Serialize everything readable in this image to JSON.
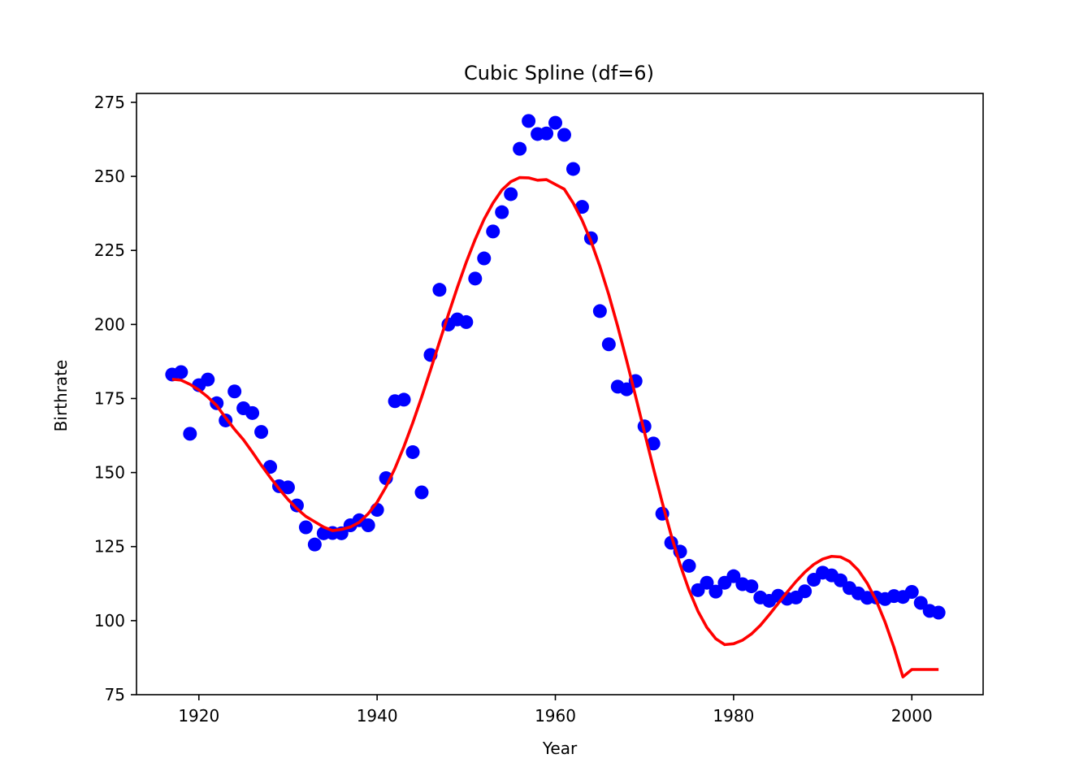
{
  "chart_data": {
    "type": "scatter",
    "title": "Cubic Spline (df=6)",
    "xlabel": "Year",
    "ylabel": "Birthrate",
    "xlim": [
      1913,
      2008
    ],
    "ylim": [
      75,
      278
    ],
    "xticks": [
      1920,
      1940,
      1960,
      1980,
      2000
    ],
    "yticks": [
      75,
      100,
      125,
      150,
      175,
      200,
      225,
      250,
      275
    ],
    "grid": false,
    "colors": {
      "points": "#0000ff",
      "fit": "#ff0000"
    },
    "series": [
      {
        "kind": "points",
        "x": [
          1917,
          1918,
          1919,
          1920,
          1921,
          1922,
          1923,
          1924,
          1925,
          1926,
          1927,
          1928,
          1929,
          1930,
          1931,
          1932,
          1933,
          1934,
          1935,
          1936,
          1937,
          1938,
          1939,
          1940,
          1941,
          1942,
          1943,
          1944,
          1945,
          1946,
          1947,
          1948,
          1949,
          1950,
          1951,
          1952,
          1953,
          1954,
          1955,
          1956,
          1957,
          1958,
          1959,
          1960,
          1961,
          1962,
          1963,
          1964,
          1965,
          1966,
          1967,
          1968,
          1969,
          1970,
          1971,
          1972,
          1973,
          1974,
          1975,
          1976,
          1977,
          1978,
          1979,
          1980,
          1981,
          1982,
          1983,
          1984,
          1985,
          1986,
          1987,
          1988,
          1989,
          1990,
          1991,
          1992,
          1993,
          1994,
          1995,
          1996,
          1997,
          1998,
          1999,
          2000,
          2001,
          2002,
          2003
        ],
        "y": [
          183.1,
          183.9,
          163.1,
          179.5,
          181.4,
          173.4,
          167.6,
          177.4,
          171.7,
          170.1,
          163.7,
          151.9,
          145.4,
          145.0,
          138.9,
          131.5,
          125.7,
          129.5,
          129.6,
          129.5,
          132.2,
          133.9,
          132.2,
          137.4,
          148.1,
          174.1,
          174.6,
          156.9,
          143.3,
          189.7,
          211.7,
          200.0,
          201.7,
          200.8,
          215.5,
          222.3,
          231.4,
          237.9,
          244.0,
          259.3,
          268.7,
          264.3,
          264.5,
          268.1,
          264.0,
          252.5,
          239.7,
          229.1,
          204.5,
          193.3,
          179.0,
          178.1,
          180.9,
          165.6,
          159.8,
          136.1,
          126.3,
          123.3,
          118.5,
          110.3,
          112.8,
          109.8,
          112.8,
          115.0,
          112.3,
          111.6,
          107.8,
          106.7,
          108.4,
          107.4,
          107.8,
          109.9,
          113.8,
          116.2,
          115.3,
          113.6,
          111.0,
          109.2,
          107.7,
          107.8,
          107.3,
          108.3,
          108.0,
          109.7,
          106.0,
          103.3,
          102.7
        ]
      },
      {
        "kind": "line",
        "x": [
          1917,
          1918,
          1919,
          1920,
          1921,
          1922,
          1923,
          1924,
          1925,
          1926,
          1927,
          1928,
          1929,
          1930,
          1931,
          1932,
          1933,
          1934,
          1935,
          1936,
          1937,
          1938,
          1939,
          1940,
          1941,
          1942,
          1943,
          1944,
          1945,
          1946,
          1947,
          1948,
          1949,
          1950,
          1951,
          1952,
          1953,
          1954,
          1955,
          1956,
          1957,
          1958,
          1959,
          1960,
          1961,
          1962,
          1963,
          1964,
          1965,
          1966,
          1967,
          1968,
          1969,
          1970,
          1971,
          1972,
          1973,
          1974,
          1975,
          1976,
          1977,
          1978,
          1979,
          1980,
          1981,
          1982,
          1983,
          1984,
          1985,
          1986,
          1987,
          1988,
          1989,
          1990,
          1991,
          1992,
          1993,
          1994,
          1995,
          1996,
          1997,
          1998,
          1999,
          2000,
          2001,
          2002,
          2003
        ],
        "y": [
          181.5,
          181.2,
          179.8,
          177.9,
          175.5,
          172.6,
          168.5,
          164.6,
          161.1,
          156.9,
          152.5,
          148.4,
          144.5,
          140.9,
          137.8,
          135.2,
          133.4,
          131.6,
          130.4,
          130.8,
          131.6,
          133.2,
          136.1,
          140.0,
          145.2,
          151.4,
          158.7,
          166.8,
          175.5,
          184.7,
          194.1,
          203.4,
          212.5,
          221.0,
          228.7,
          235.5,
          241.0,
          245.4,
          248.2,
          249.6,
          249.5,
          248.7,
          248.9,
          247.3,
          245.7,
          241.0,
          235.2,
          228.1,
          219.6,
          210.0,
          199.3,
          187.8,
          175.8,
          163.6,
          151.5,
          139.8,
          128.8,
          118.9,
          110.3,
          103.2,
          97.7,
          93.9,
          91.9,
          92.2,
          93.4,
          95.5,
          98.4,
          102.0,
          105.8,
          109.6,
          113.2,
          116.4,
          119.0,
          120.8,
          121.7,
          121.5,
          120.0,
          117.0,
          112.6,
          106.8,
          99.5,
          90.9,
          81.0,
          83.5,
          83.5,
          83.5,
          83.5
        ]
      }
    ]
  }
}
